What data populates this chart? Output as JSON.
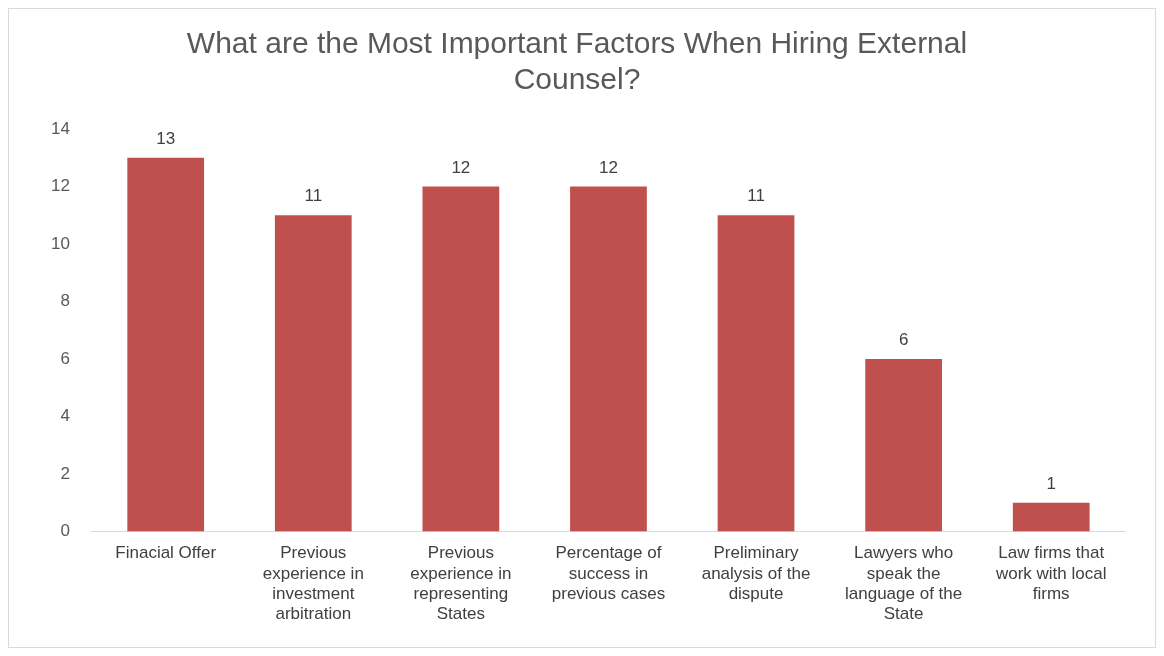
{
  "chart_data": {
    "type": "bar",
    "title": "What are the Most Important Factors When Hiring External Counsel?",
    "categories": [
      "Finacial Offer",
      "Previous experience in investment arbitration",
      "Previous experience in representing States",
      "Percentage of success in previous cases",
      "Preliminary analysis of the dispute",
      "Lawyers who speak the language of the State",
      "Law firms that work with local firms"
    ],
    "values": [
      13,
      11,
      12,
      12,
      11,
      6,
      1
    ],
    "color": "#c0504d",
    "ylim": [
      0,
      14
    ],
    "yticks": [
      0,
      2,
      4,
      6,
      8,
      10,
      12,
      14
    ],
    "grid": false,
    "data_labels": true
  }
}
